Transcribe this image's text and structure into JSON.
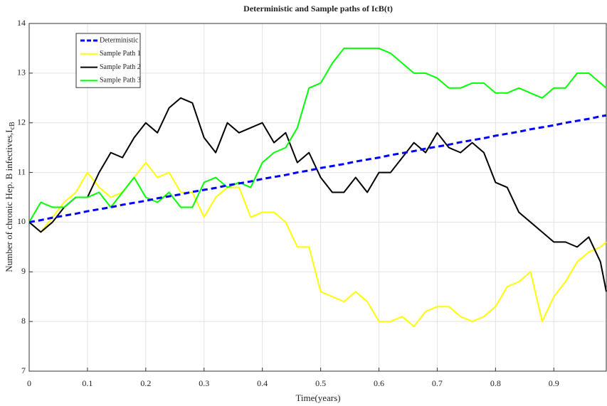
{
  "chart_data": {
    "type": "line",
    "title": "Deterministic and Sample paths of IcB(t)",
    "xlabel": "Time(years)",
    "ylabel": "Number of chronic Hep. B infectives,I",
    "ylabel_subscript": "cB",
    "x": [
      0,
      0.02,
      0.04,
      0.06,
      0.08,
      0.1,
      0.12,
      0.14,
      0.16,
      0.18,
      0.2,
      0.22,
      0.24,
      0.26,
      0.28,
      0.3,
      0.32,
      0.34,
      0.36,
      0.38,
      0.4,
      0.42,
      0.44,
      0.46,
      0.48,
      0.5,
      0.52,
      0.54,
      0.56,
      0.58,
      0.6,
      0.62,
      0.64,
      0.66,
      0.68,
      0.7,
      0.72,
      0.74,
      0.76,
      0.78,
      0.8,
      0.82,
      0.84,
      0.86,
      0.88,
      0.9,
      0.92,
      0.94,
      0.96,
      0.98,
      0.99
    ],
    "series": [
      {
        "name": "Deterministic",
        "color": "#0000ff",
        "dashed": true,
        "values": [
          10,
          10.04,
          10.09,
          10.13,
          10.17,
          10.22,
          10.26,
          10.3,
          10.35,
          10.39,
          10.43,
          10.48,
          10.52,
          10.56,
          10.61,
          10.65,
          10.69,
          10.74,
          10.78,
          10.82,
          10.87,
          10.91,
          10.95,
          11,
          11.04,
          11.09,
          11.13,
          11.17,
          11.22,
          11.26,
          11.3,
          11.35,
          11.39,
          11.43,
          11.48,
          11.52,
          11.56,
          11.61,
          11.65,
          11.69,
          11.74,
          11.78,
          11.82,
          11.87,
          11.91,
          11.95,
          12,
          12.04,
          12.08,
          12.13,
          12.15
        ]
      },
      {
        "name": "Sample Path 1",
        "color": "#ffff00",
        "dashed": false,
        "values": [
          10,
          9.8,
          10.1,
          10.4,
          10.6,
          11,
          10.7,
          10.5,
          10.6,
          10.9,
          11.2,
          10.9,
          11,
          10.6,
          10.6,
          10.1,
          10.5,
          10.7,
          10.7,
          10.1,
          10.2,
          10.2,
          10,
          9.5,
          9.5,
          8.6,
          8.5,
          8.4,
          8.6,
          8.4,
          8,
          8,
          8.1,
          7.9,
          8.2,
          8.3,
          8.3,
          8.1,
          8,
          8.1,
          8.3,
          8.7,
          8.8,
          9,
          8,
          8.5,
          8.8,
          9.2,
          9.4,
          9.5,
          9.6
        ]
      },
      {
        "name": "Sample Path 2",
        "color": "#000000",
        "dashed": false,
        "values": [
          10,
          9.8,
          10,
          10.3,
          10.5,
          10.5,
          11,
          11.4,
          11.3,
          11.7,
          12,
          11.8,
          12.3,
          12.5,
          12.4,
          11.7,
          11.4,
          12,
          11.8,
          11.9,
          12,
          11.6,
          11.8,
          11.2,
          11.4,
          10.9,
          10.6,
          10.6,
          10.9,
          10.6,
          11,
          11,
          11.3,
          11.6,
          11.4,
          11.8,
          11.5,
          11.4,
          11.6,
          11.4,
          10.8,
          10.7,
          10.2,
          10,
          9.8,
          9.6,
          9.6,
          9.5,
          9.7,
          9.2,
          8.6
        ]
      },
      {
        "name": "Sample Path 3",
        "color": "#00ff00",
        "dashed": false,
        "values": [
          10,
          10.4,
          10.3,
          10.3,
          10.5,
          10.5,
          10.6,
          10.3,
          10.6,
          10.9,
          10.5,
          10.4,
          10.6,
          10.3,
          10.3,
          10.8,
          10.9,
          10.7,
          10.8,
          10.7,
          11.2,
          11.4,
          11.5,
          11.9,
          12.7,
          12.8,
          13.2,
          13.5,
          13.5,
          13.5,
          13.5,
          13.4,
          13.2,
          13,
          13,
          12.9,
          12.7,
          12.7,
          12.8,
          12.8,
          12.6,
          12.6,
          12.7,
          12.6,
          12.5,
          12.7,
          12.7,
          13,
          13,
          12.8,
          12.7
        ]
      }
    ],
    "xlim": [
      0,
      0.99
    ],
    "ylim": [
      7,
      14
    ],
    "xticks": [
      0,
      0.1,
      0.2,
      0.3,
      0.4,
      0.5,
      0.6,
      0.7,
      0.8,
      0.9
    ],
    "yticks": [
      7,
      8,
      9,
      10,
      11,
      12,
      13,
      14
    ],
    "grid": true,
    "legend": "upper left"
  }
}
